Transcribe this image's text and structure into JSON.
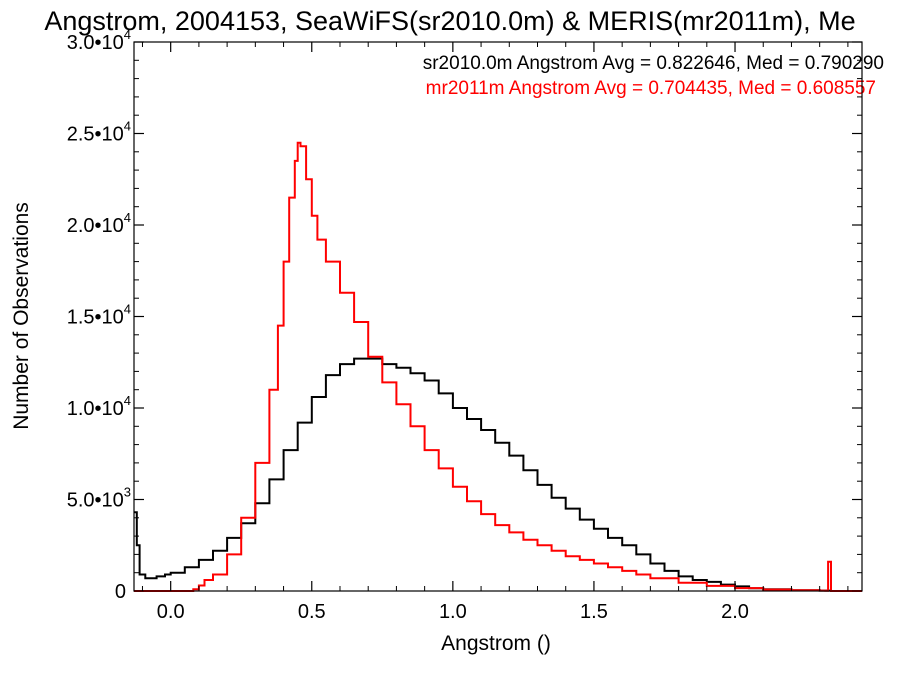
{
  "chart_data": {
    "type": "line",
    "title": "Angstrom, 2004153, SeaWiFS(sr2010.0m) & MERIS(mr2011m), Me",
    "xlabel": "Angstrom ()",
    "ylabel": "Number of Observations",
    "xlim": [
      -0.13,
      2.45
    ],
    "ylim": [
      0,
      30000
    ],
    "x_ticks": [
      {
        "value": 0.0,
        "label": "0.0"
      },
      {
        "value": 0.5,
        "label": "0.5"
      },
      {
        "value": 1.0,
        "label": "1.0"
      },
      {
        "value": 1.5,
        "label": "1.5"
      },
      {
        "value": 2.0,
        "label": "2.0"
      }
    ],
    "y_ticks": [
      {
        "value": 0,
        "base": "0",
        "exp": ""
      },
      {
        "value": 5000,
        "base": "5.0•10",
        "exp": "3"
      },
      {
        "value": 10000,
        "base": "1.0•10",
        "exp": "4"
      },
      {
        "value": 15000,
        "base": "1.5•10",
        "exp": "4"
      },
      {
        "value": 20000,
        "base": "2.0•10",
        "exp": "4"
      },
      {
        "value": 25000,
        "base": "2.5•10",
        "exp": "4"
      },
      {
        "value": 30000,
        "base": "3.0•10",
        "exp": "4"
      }
    ],
    "grid": false,
    "legend_placement": "top-right",
    "series": [
      {
        "label": "sr2010.0m Angstrom Avg = 0.822646, Med = 0.790290",
        "color": "#000000",
        "points": [
          [
            -0.13,
            4300
          ],
          [
            -0.12,
            2500
          ],
          [
            -0.11,
            900
          ],
          [
            -0.09,
            700
          ],
          [
            -0.05,
            800
          ],
          [
            -0.02,
            900
          ],
          [
            0.0,
            1000
          ],
          [
            0.05,
            1300
          ],
          [
            0.1,
            1700
          ],
          [
            0.15,
            2200
          ],
          [
            0.2,
            2900
          ],
          [
            0.25,
            3700
          ],
          [
            0.3,
            4800
          ],
          [
            0.35,
            6100
          ],
          [
            0.4,
            7700
          ],
          [
            0.45,
            9200
          ],
          [
            0.5,
            10600
          ],
          [
            0.55,
            11800
          ],
          [
            0.6,
            12400
          ],
          [
            0.65,
            12700
          ],
          [
            0.7,
            12700
          ],
          [
            0.75,
            12400
          ],
          [
            0.8,
            12200
          ],
          [
            0.85,
            11900
          ],
          [
            0.9,
            11500
          ],
          [
            0.95,
            10800
          ],
          [
            1.0,
            10000
          ],
          [
            1.05,
            9400
          ],
          [
            1.1,
            8800
          ],
          [
            1.15,
            8100
          ],
          [
            1.2,
            7400
          ],
          [
            1.25,
            6600
          ],
          [
            1.3,
            5800
          ],
          [
            1.35,
            5100
          ],
          [
            1.4,
            4500
          ],
          [
            1.45,
            3900
          ],
          [
            1.5,
            3400
          ],
          [
            1.55,
            2900
          ],
          [
            1.6,
            2500
          ],
          [
            1.65,
            2000
          ],
          [
            1.7,
            1500
          ],
          [
            1.75,
            1100
          ],
          [
            1.8,
            800
          ],
          [
            1.85,
            600
          ],
          [
            1.9,
            500
          ],
          [
            1.95,
            350
          ],
          [
            2.0,
            250
          ],
          [
            2.05,
            150
          ],
          [
            2.1,
            100
          ],
          [
            2.2,
            40
          ],
          [
            2.3,
            20
          ],
          [
            2.34,
            10
          ]
        ]
      },
      {
        "label": "mr2011m Angstrom Avg = 0.704435, Med = 0.608557",
        "color": "#ff0000",
        "points": [
          [
            -0.13,
            0
          ],
          [
            0.05,
            0
          ],
          [
            0.08,
            100
          ],
          [
            0.1,
            300
          ],
          [
            0.12,
            600
          ],
          [
            0.15,
            900
          ],
          [
            0.2,
            2000
          ],
          [
            0.25,
            4000
          ],
          [
            0.3,
            7000
          ],
          [
            0.35,
            11000
          ],
          [
            0.38,
            14500
          ],
          [
            0.4,
            18000
          ],
          [
            0.42,
            21500
          ],
          [
            0.44,
            23500
          ],
          [
            0.45,
            24500
          ],
          [
            0.46,
            24300
          ],
          [
            0.48,
            22500
          ],
          [
            0.5,
            20500
          ],
          [
            0.52,
            19200
          ],
          [
            0.55,
            18000
          ],
          [
            0.6,
            16300
          ],
          [
            0.65,
            14700
          ],
          [
            0.7,
            12800
          ],
          [
            0.75,
            11400
          ],
          [
            0.8,
            10200
          ],
          [
            0.85,
            9000
          ],
          [
            0.9,
            7700
          ],
          [
            0.95,
            6700
          ],
          [
            1.0,
            5700
          ],
          [
            1.05,
            4900
          ],
          [
            1.1,
            4200
          ],
          [
            1.15,
            3600
          ],
          [
            1.2,
            3200
          ],
          [
            1.25,
            2800
          ],
          [
            1.3,
            2500
          ],
          [
            1.35,
            2200
          ],
          [
            1.4,
            1900
          ],
          [
            1.45,
            1700
          ],
          [
            1.5,
            1500
          ],
          [
            1.55,
            1300
          ],
          [
            1.6,
            1100
          ],
          [
            1.65,
            900
          ],
          [
            1.7,
            700
          ],
          [
            1.8,
            450
          ],
          [
            1.9,
            280
          ],
          [
            2.0,
            160
          ],
          [
            2.1,
            80
          ],
          [
            2.2,
            40
          ],
          [
            2.3,
            20
          ],
          [
            2.32,
            10
          ],
          [
            2.33,
            1600
          ],
          [
            2.34,
            0
          ],
          [
            2.45,
            0
          ]
        ]
      }
    ]
  }
}
